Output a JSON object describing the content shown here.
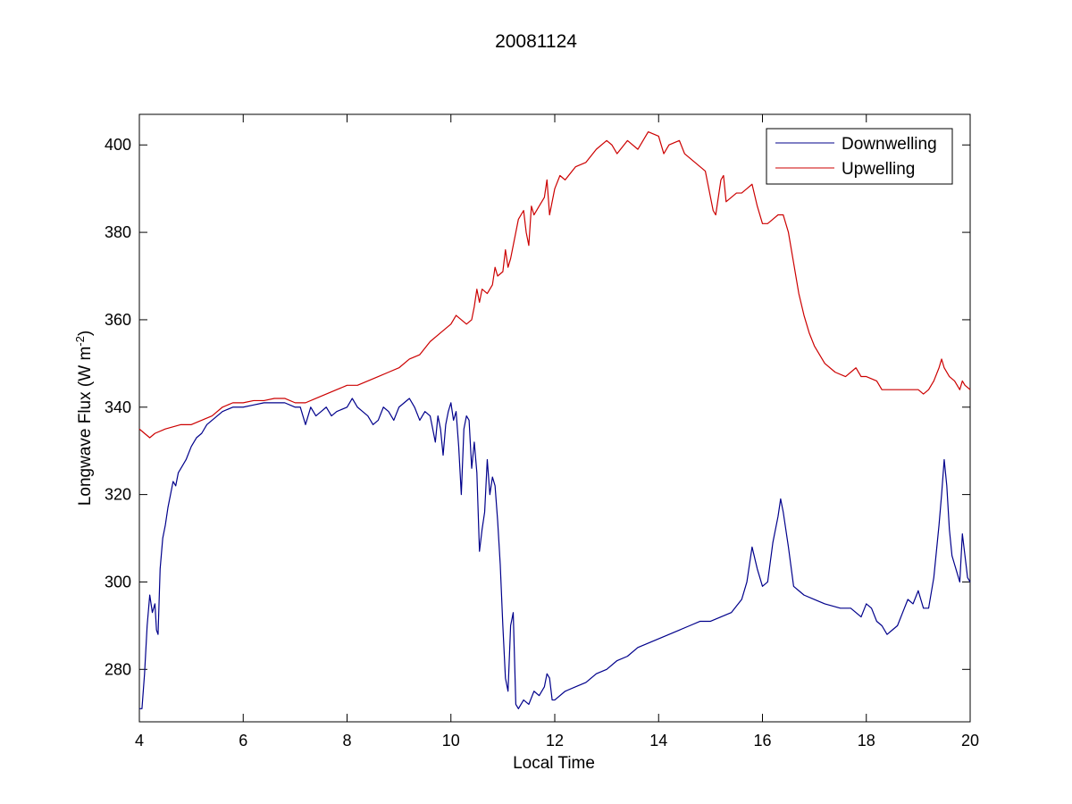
{
  "chart_data": {
    "type": "line",
    "title": "20081124",
    "xlabel": "Local Time",
    "ylabel": {
      "main": "Longwave Flux (W m",
      "sup": "-2",
      "close": ")"
    },
    "xlim": [
      4,
      20
    ],
    "ylim": [
      268,
      407
    ],
    "xticks": [
      4,
      6,
      8,
      10,
      12,
      14,
      16,
      18,
      20
    ],
    "yticks": [
      280,
      300,
      320,
      340,
      360,
      380,
      400
    ],
    "grid": false,
    "legend_position": "top-right",
    "series": [
      {
        "name": "Downwelling",
        "color": "#00008b",
        "points": [
          [
            4.0,
            271
          ],
          [
            4.05,
            271
          ],
          [
            4.1,
            279
          ],
          [
            4.15,
            290
          ],
          [
            4.2,
            297
          ],
          [
            4.25,
            293
          ],
          [
            4.3,
            295
          ],
          [
            4.33,
            289
          ],
          [
            4.36,
            288
          ],
          [
            4.4,
            303
          ],
          [
            4.45,
            310
          ],
          [
            4.5,
            313
          ],
          [
            4.55,
            317
          ],
          [
            4.6,
            320
          ],
          [
            4.65,
            323
          ],
          [
            4.7,
            322
          ],
          [
            4.75,
            325
          ],
          [
            4.8,
            326
          ],
          [
            4.9,
            328
          ],
          [
            5.0,
            331
          ],
          [
            5.1,
            333
          ],
          [
            5.2,
            334
          ],
          [
            5.3,
            336
          ],
          [
            5.4,
            337
          ],
          [
            5.5,
            338
          ],
          [
            5.6,
            339
          ],
          [
            5.8,
            340
          ],
          [
            6.0,
            340
          ],
          [
            6.2,
            340.5
          ],
          [
            6.4,
            341
          ],
          [
            6.6,
            341
          ],
          [
            6.8,
            341
          ],
          [
            7.0,
            340
          ],
          [
            7.1,
            340
          ],
          [
            7.2,
            336
          ],
          [
            7.3,
            340
          ],
          [
            7.4,
            338
          ],
          [
            7.5,
            339
          ],
          [
            7.6,
            340
          ],
          [
            7.7,
            338
          ],
          [
            7.8,
            339
          ],
          [
            8.0,
            340
          ],
          [
            8.1,
            342
          ],
          [
            8.2,
            340
          ],
          [
            8.3,
            339
          ],
          [
            8.4,
            338
          ],
          [
            8.5,
            336
          ],
          [
            8.6,
            337
          ],
          [
            8.7,
            340
          ],
          [
            8.8,
            339
          ],
          [
            8.9,
            337
          ],
          [
            9.0,
            340
          ],
          [
            9.1,
            341
          ],
          [
            9.2,
            342
          ],
          [
            9.3,
            340
          ],
          [
            9.4,
            337
          ],
          [
            9.5,
            339
          ],
          [
            9.6,
            338
          ],
          [
            9.7,
            332
          ],
          [
            9.75,
            338
          ],
          [
            9.8,
            335
          ],
          [
            9.85,
            329
          ],
          [
            9.9,
            336
          ],
          [
            9.95,
            339
          ],
          [
            10.0,
            341
          ],
          [
            10.05,
            337
          ],
          [
            10.1,
            339
          ],
          [
            10.15,
            331
          ],
          [
            10.2,
            320
          ],
          [
            10.25,
            335
          ],
          [
            10.3,
            338
          ],
          [
            10.35,
            337
          ],
          [
            10.4,
            326
          ],
          [
            10.45,
            332
          ],
          [
            10.5,
            325
          ],
          [
            10.55,
            307
          ],
          [
            10.6,
            312
          ],
          [
            10.65,
            316
          ],
          [
            10.7,
            328
          ],
          [
            10.75,
            320
          ],
          [
            10.8,
            324
          ],
          [
            10.85,
            322
          ],
          [
            10.9,
            314
          ],
          [
            10.95,
            304
          ],
          [
            11.0,
            290
          ],
          [
            11.05,
            278
          ],
          [
            11.1,
            275
          ],
          [
            11.15,
            290
          ],
          [
            11.2,
            293
          ],
          [
            11.25,
            272
          ],
          [
            11.3,
            271
          ],
          [
            11.4,
            273
          ],
          [
            11.5,
            272
          ],
          [
            11.6,
            275
          ],
          [
            11.7,
            274
          ],
          [
            11.8,
            276
          ],
          [
            11.85,
            279
          ],
          [
            11.9,
            278
          ],
          [
            11.95,
            273
          ],
          [
            12.0,
            273
          ],
          [
            12.2,
            275
          ],
          [
            12.4,
            276
          ],
          [
            12.6,
            277
          ],
          [
            12.8,
            279
          ],
          [
            13.0,
            280
          ],
          [
            13.2,
            282
          ],
          [
            13.4,
            283
          ],
          [
            13.6,
            285
          ],
          [
            13.8,
            286
          ],
          [
            14.0,
            287
          ],
          [
            14.2,
            288
          ],
          [
            14.4,
            289
          ],
          [
            14.6,
            290
          ],
          [
            14.8,
            291
          ],
          [
            15.0,
            291
          ],
          [
            15.2,
            292
          ],
          [
            15.4,
            293
          ],
          [
            15.6,
            296
          ],
          [
            15.7,
            300
          ],
          [
            15.8,
            308
          ],
          [
            15.9,
            303
          ],
          [
            16.0,
            299
          ],
          [
            16.1,
            300
          ],
          [
            16.2,
            309
          ],
          [
            16.3,
            315
          ],
          [
            16.35,
            319
          ],
          [
            16.4,
            316
          ],
          [
            16.5,
            308
          ],
          [
            16.6,
            299
          ],
          [
            16.7,
            298
          ],
          [
            16.8,
            297
          ],
          [
            17.0,
            296
          ],
          [
            17.2,
            295
          ],
          [
            17.5,
            294
          ],
          [
            17.7,
            294
          ],
          [
            17.8,
            293
          ],
          [
            17.9,
            292
          ],
          [
            18.0,
            295
          ],
          [
            18.1,
            294
          ],
          [
            18.2,
            291
          ],
          [
            18.3,
            290
          ],
          [
            18.4,
            288
          ],
          [
            18.5,
            289
          ],
          [
            18.6,
            290
          ],
          [
            18.7,
            293
          ],
          [
            18.8,
            296
          ],
          [
            18.9,
            295
          ],
          [
            19.0,
            298
          ],
          [
            19.1,
            294
          ],
          [
            19.2,
            294
          ],
          [
            19.3,
            301
          ],
          [
            19.4,
            313
          ],
          [
            19.45,
            320
          ],
          [
            19.5,
            328
          ],
          [
            19.55,
            322
          ],
          [
            19.6,
            312
          ],
          [
            19.65,
            306
          ],
          [
            19.7,
            304
          ],
          [
            19.75,
            302
          ],
          [
            19.8,
            300
          ],
          [
            19.85,
            311
          ],
          [
            19.9,
            306
          ],
          [
            19.95,
            301
          ],
          [
            20.0,
            300
          ]
        ]
      },
      {
        "name": "Upwelling",
        "color": "#cc0000",
        "points": [
          [
            4.0,
            335
          ],
          [
            4.1,
            334
          ],
          [
            4.2,
            333
          ],
          [
            4.3,
            334
          ],
          [
            4.5,
            335
          ],
          [
            4.8,
            336
          ],
          [
            5.0,
            336
          ],
          [
            5.2,
            337
          ],
          [
            5.4,
            338
          ],
          [
            5.6,
            340
          ],
          [
            5.8,
            341
          ],
          [
            6.0,
            341
          ],
          [
            6.2,
            341.5
          ],
          [
            6.4,
            341.5
          ],
          [
            6.6,
            342
          ],
          [
            6.8,
            342
          ],
          [
            7.0,
            341
          ],
          [
            7.2,
            341
          ],
          [
            7.4,
            342
          ],
          [
            7.6,
            343
          ],
          [
            7.8,
            344
          ],
          [
            8.0,
            345
          ],
          [
            8.2,
            345
          ],
          [
            8.4,
            346
          ],
          [
            8.6,
            347
          ],
          [
            8.8,
            348
          ],
          [
            9.0,
            349
          ],
          [
            9.2,
            351
          ],
          [
            9.4,
            352
          ],
          [
            9.6,
            355
          ],
          [
            9.8,
            357
          ],
          [
            10.0,
            359
          ],
          [
            10.1,
            361
          ],
          [
            10.2,
            360
          ],
          [
            10.3,
            359
          ],
          [
            10.4,
            360
          ],
          [
            10.45,
            363
          ],
          [
            10.5,
            367
          ],
          [
            10.55,
            364
          ],
          [
            10.6,
            367
          ],
          [
            10.7,
            366
          ],
          [
            10.8,
            368
          ],
          [
            10.85,
            372
          ],
          [
            10.9,
            370
          ],
          [
            11.0,
            371
          ],
          [
            11.05,
            376
          ],
          [
            11.1,
            372
          ],
          [
            11.15,
            374
          ],
          [
            11.2,
            377
          ],
          [
            11.3,
            383
          ],
          [
            11.4,
            385
          ],
          [
            11.45,
            380
          ],
          [
            11.5,
            377
          ],
          [
            11.55,
            386
          ],
          [
            11.6,
            384
          ],
          [
            11.7,
            386
          ],
          [
            11.8,
            388
          ],
          [
            11.85,
            392
          ],
          [
            11.9,
            384
          ],
          [
            12.0,
            390
          ],
          [
            12.1,
            393
          ],
          [
            12.2,
            392
          ],
          [
            12.4,
            395
          ],
          [
            12.6,
            396
          ],
          [
            12.8,
            399
          ],
          [
            13.0,
            401
          ],
          [
            13.1,
            400
          ],
          [
            13.2,
            398
          ],
          [
            13.4,
            401
          ],
          [
            13.6,
            399
          ],
          [
            13.8,
            403
          ],
          [
            14.0,
            402
          ],
          [
            14.1,
            398
          ],
          [
            14.2,
            400
          ],
          [
            14.4,
            401
          ],
          [
            14.5,
            398
          ],
          [
            14.6,
            397
          ],
          [
            14.8,
            395
          ],
          [
            14.9,
            394
          ],
          [
            15.0,
            388
          ],
          [
            15.05,
            385
          ],
          [
            15.1,
            384
          ],
          [
            15.2,
            392
          ],
          [
            15.25,
            393
          ],
          [
            15.3,
            387
          ],
          [
            15.4,
            388
          ],
          [
            15.5,
            389
          ],
          [
            15.6,
            389
          ],
          [
            15.7,
            390
          ],
          [
            15.8,
            391
          ],
          [
            15.9,
            386
          ],
          [
            16.0,
            382
          ],
          [
            16.1,
            382
          ],
          [
            16.2,
            383
          ],
          [
            16.3,
            384
          ],
          [
            16.4,
            384
          ],
          [
            16.5,
            380
          ],
          [
            16.6,
            373
          ],
          [
            16.7,
            366
          ],
          [
            16.8,
            361
          ],
          [
            16.9,
            357
          ],
          [
            17.0,
            354
          ],
          [
            17.2,
            350
          ],
          [
            17.4,
            348
          ],
          [
            17.6,
            347
          ],
          [
            17.8,
            349
          ],
          [
            17.9,
            347
          ],
          [
            18.0,
            347
          ],
          [
            18.2,
            346
          ],
          [
            18.3,
            344
          ],
          [
            18.5,
            344
          ],
          [
            18.7,
            344
          ],
          [
            18.9,
            344
          ],
          [
            19.0,
            344
          ],
          [
            19.1,
            343
          ],
          [
            19.2,
            344
          ],
          [
            19.3,
            346
          ],
          [
            19.4,
            349
          ],
          [
            19.45,
            351
          ],
          [
            19.5,
            349
          ],
          [
            19.6,
            347
          ],
          [
            19.7,
            346
          ],
          [
            19.8,
            344
          ],
          [
            19.85,
            346
          ],
          [
            19.9,
            345
          ],
          [
            20.0,
            344
          ]
        ]
      }
    ]
  }
}
